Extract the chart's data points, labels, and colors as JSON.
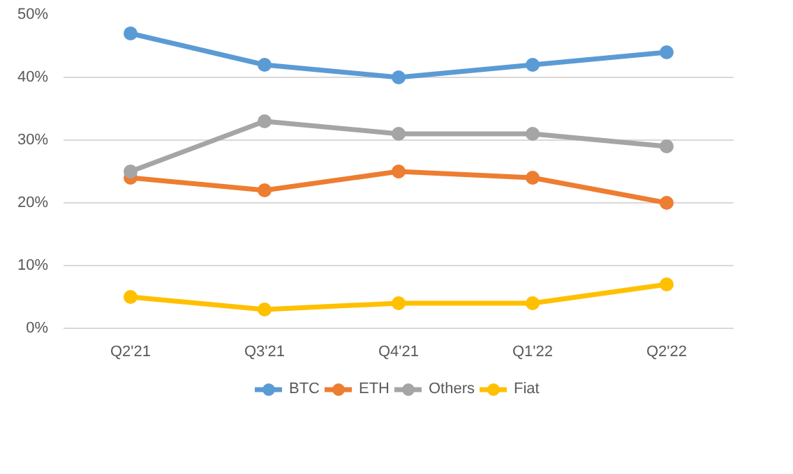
{
  "chart_data": {
    "type": "line",
    "categories": [
      "Q2'21",
      "Q3'21",
      "Q4'21",
      "Q1'22",
      "Q2'22"
    ],
    "series": [
      {
        "name": "BTC",
        "color": "#5b9bd5",
        "values": [
          47,
          42,
          40,
          42,
          44
        ]
      },
      {
        "name": "ETH",
        "color": "#ed7d31",
        "values": [
          24,
          22,
          25,
          24,
          20
        ]
      },
      {
        "name": "Others",
        "color": "#a5a5a5",
        "values": [
          25,
          33,
          31,
          31,
          29
        ]
      },
      {
        "name": "Fiat",
        "color": "#ffc000",
        "values": [
          5,
          3,
          4,
          4,
          7
        ]
      }
    ],
    "ylim": [
      0,
      50
    ],
    "yticks": [
      {
        "value": 0,
        "label": "0%"
      },
      {
        "value": 10,
        "label": "10%"
      },
      {
        "value": 20,
        "label": "20%"
      },
      {
        "value": 30,
        "label": "30%"
      },
      {
        "value": 40,
        "label": "40%"
      },
      {
        "value": 50,
        "label": "50%"
      }
    ],
    "grid": "y",
    "legend": "bottom",
    "marker": "circle",
    "line_style": "solid"
  }
}
